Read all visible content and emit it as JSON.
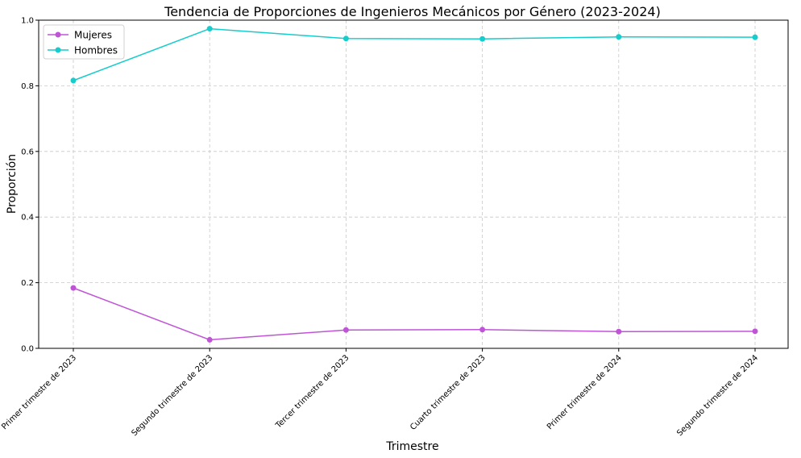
{
  "chart_data": {
    "type": "line",
    "title": "Tendencia de Proporciones de Ingenieros Mecánicos por Género (2023-2024)",
    "xlabel": "Trimestre",
    "ylabel": "Proporción",
    "categories": [
      "Primer trimestre de 2023",
      "Segundo trimestre de 2023",
      "Tercer trimestre de 2023",
      "Cuarto trimestre de 2023",
      "Primer trimestre de 2024",
      "Segundo trimestre de 2024"
    ],
    "series": [
      {
        "name": "Mujeres",
        "color": "#bf55d6",
        "values": [
          0.184,
          0.026,
          0.056,
          0.057,
          0.051,
          0.052
        ]
      },
      {
        "name": "Hombres",
        "color": "#17cccc",
        "values": [
          0.816,
          0.974,
          0.944,
          0.943,
          0.949,
          0.948
        ]
      }
    ],
    "ylim": [
      0,
      1.0
    ],
    "yticks": [
      "0.0",
      "0.2",
      "0.4",
      "0.6",
      "0.8",
      "1.0"
    ],
    "grid": true,
    "legend": "top-left"
  }
}
